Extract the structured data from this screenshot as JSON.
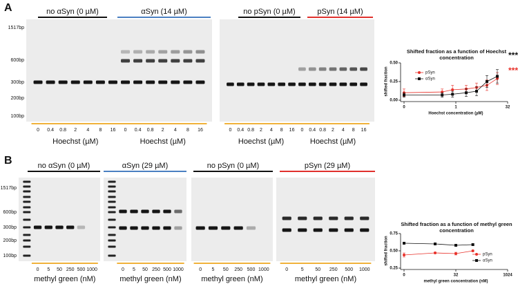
{
  "panels": [
    {
      "label": "A",
      "gels": [
        {
          "headers": [
            "no αSyn (0 µM)",
            "αSyn (14 µM)"
          ],
          "ladder": [
            "1517bp",
            "600bp",
            "300bp",
            "200bp",
            "100bp"
          ],
          "lanes": [
            "0",
            "0.4",
            "0.8",
            "2",
            "4",
            "8",
            "16",
            "0",
            "0.4",
            "0.8",
            "2",
            "4",
            "8",
            "16"
          ],
          "axis_labels": [
            "Hoechst (µM)",
            "Hoechst (µM)"
          ]
        },
        {
          "headers": [
            "no pSyn (0 µM)",
            "pSyn (14 µM)"
          ],
          "lanes": [
            "0",
            "0.4",
            "0.8",
            "2",
            "4",
            "8",
            "16",
            "0",
            "0.4",
            "0.8",
            "2",
            "4",
            "8",
            "16"
          ],
          "axis_labels": [
            "Hoechst (µM)",
            "Hoechst (µM)"
          ]
        }
      ]
    },
    {
      "label": "B",
      "gels": [
        {
          "headers": [
            "no αSyn (0 µM)",
            "αSyn (29 µM)"
          ],
          "ladder": [
            "1517bp",
            "600bp",
            "300bp",
            "200bp",
            "100bp"
          ],
          "lanes": [
            "0",
            "5",
            "50",
            "250",
            "500",
            "1000",
            "0",
            "5",
            "50",
            "250",
            "500",
            "1000"
          ],
          "axis_labels": [
            "methyl green (nM)",
            "methyl green (nM)"
          ]
        },
        {
          "headers": [
            "no pSyn (0 µM)",
            "pSyn (29 µM)"
          ],
          "lanes": [
            "0",
            "5",
            "50",
            "250",
            "500",
            "1000",
            "0",
            "5",
            "50",
            "250",
            "500",
            "1000"
          ],
          "axis_labels": [
            "methyl green (nM)",
            "methyl green (nM)"
          ]
        }
      ]
    }
  ],
  "chart_data": [
    {
      "type": "scatter",
      "title": "Shifted fraction as a function of Hoechst concentration",
      "xlabel": "Hoechst concentration (µM)",
      "ylabel": "shifted fraction",
      "xscale": "log",
      "x": [
        0,
        0.4,
        0.8,
        2,
        4,
        8,
        16
      ],
      "series": [
        {
          "name": "pSyn",
          "color": "#e8312a",
          "marker": "circle",
          "values": [
            0.1,
            0.11,
            0.14,
            0.15,
            0.17,
            0.2,
            0.29
          ],
          "errors": [
            0.05,
            0.04,
            0.06,
            0.05,
            0.06,
            0.07,
            0.08
          ]
        },
        {
          "name": "αSyn",
          "color": "#111111",
          "marker": "square",
          "values": [
            0.07,
            0.07,
            0.08,
            0.1,
            0.12,
            0.25,
            0.32
          ],
          "errors": [
            0.03,
            0.03,
            0.04,
            0.05,
            0.06,
            0.08,
            0.09
          ]
        }
      ],
      "xlim": [
        0,
        32
      ],
      "xticks": [
        0,
        1,
        32
      ],
      "ylim": [
        0,
        0.5
      ],
      "yticks": [
        {
          "value": 0,
          "label": "0.00"
        },
        {
          "value": 0.25,
          "label": "0.25"
        },
        {
          "value": 0.5,
          "label": "0.50"
        }
      ],
      "annotations": [
        {
          "text": "***",
          "color": "#111111"
        },
        {
          "text": "***",
          "color": "#e8312a"
        }
      ],
      "legend": "upper left"
    },
    {
      "type": "scatter",
      "title": "Shifted fraction as a function of methyl green concentration",
      "xlabel": "methyl green concentration (nM)",
      "ylabel": "shifted fraction",
      "xscale": "log",
      "x": [
        0,
        8,
        32,
        100
      ],
      "series": [
        {
          "name": "pSyn",
          "color": "#e8312a",
          "marker": "circle",
          "values": [
            0.44,
            0.47,
            0.46,
            0.5
          ],
          "errors": [
            0.03,
            0.01,
            0.02,
            0.01
          ]
        },
        {
          "name": "αSyn",
          "color": "#111111",
          "marker": "square",
          "values": [
            0.61,
            0.6,
            0.58,
            0.59
          ],
          "errors": [
            0.01,
            0.01,
            0.01,
            0.01
          ]
        }
      ],
      "xlim": [
        0,
        1024
      ],
      "xticks": [
        0,
        32,
        1024
      ],
      "ylim": [
        0.25,
        0.75
      ],
      "yticks": [
        {
          "value": 0.25,
          "label": "0.25"
        },
        {
          "value": 0.5,
          "label": "0.50"
        },
        {
          "value": 0.75,
          "label": "0.75"
        }
      ],
      "legend": "lower right"
    }
  ]
}
